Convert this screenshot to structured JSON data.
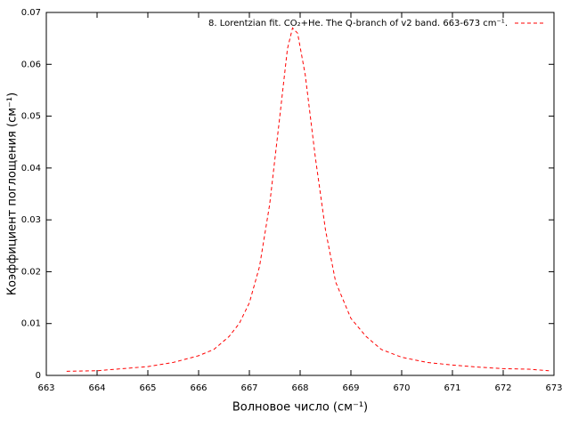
{
  "chart_data": {
    "type": "line",
    "xlabel": "Волновое число (см⁻¹)",
    "ylabel": "Коэффициент поглощения (см⁻¹)",
    "x": [
      663.4,
      664.0,
      664.5,
      665.0,
      665.5,
      666.0,
      666.3,
      666.6,
      666.8,
      667.0,
      667.2,
      667.4,
      667.6,
      667.75,
      667.85,
      667.95,
      668.1,
      668.3,
      668.5,
      668.7,
      669.0,
      669.3,
      669.6,
      670.0,
      670.5,
      671.0,
      671.5,
      672.0,
      672.5,
      672.9
    ],
    "series": [
      {
        "name": "8. Lorentzian fit. CO₂+He. The Q-branch of v2 band. 663-673 cm⁻¹.",
        "color": "#ff0000",
        "values": [
          0.0008,
          0.0009,
          0.0013,
          0.0017,
          0.0025,
          0.0038,
          0.005,
          0.0075,
          0.01,
          0.014,
          0.021,
          0.033,
          0.05,
          0.063,
          0.067,
          0.066,
          0.058,
          0.042,
          0.028,
          0.018,
          0.011,
          0.0075,
          0.005,
          0.0035,
          0.0025,
          0.002,
          0.0016,
          0.0013,
          0.0012,
          0.0009
        ]
      }
    ],
    "xlim": [
      663,
      673
    ],
    "xticks": [
      663,
      664,
      665,
      666,
      667,
      668,
      669,
      670,
      671,
      672,
      673
    ],
    "ylim": [
      0,
      0.07
    ],
    "yticks": [
      0,
      0.01,
      0.02,
      0.03,
      0.04,
      0.05,
      0.06,
      0.07
    ],
    "legend": "top-right",
    "grid": false
  }
}
